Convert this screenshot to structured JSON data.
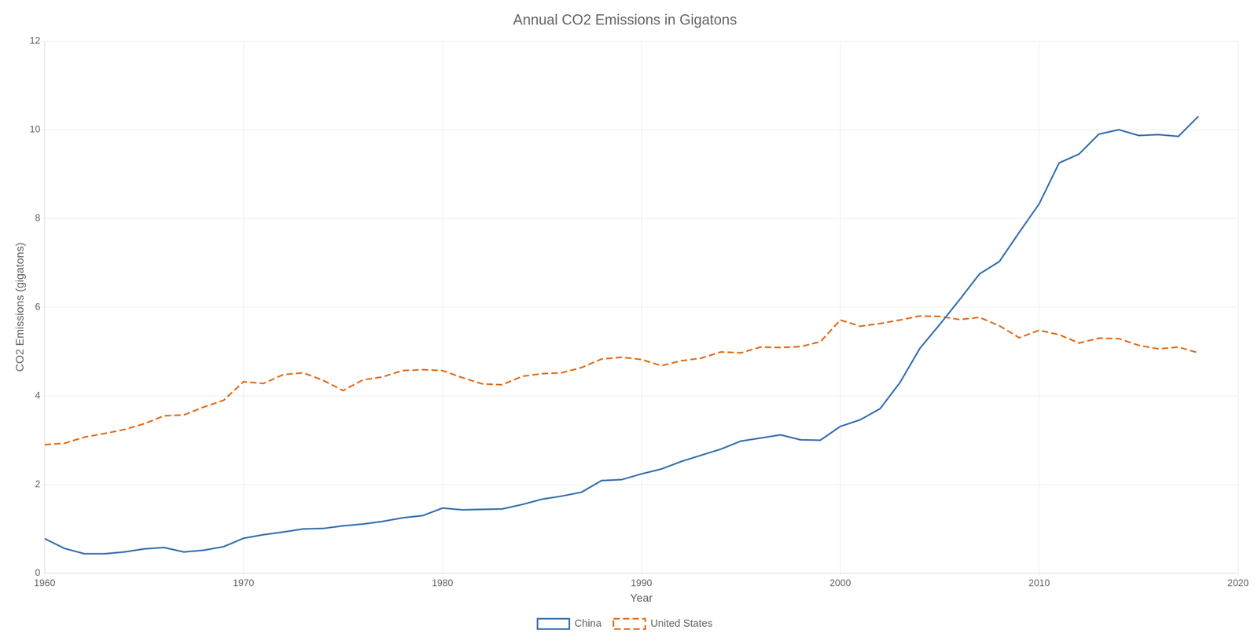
{
  "chart_data": {
    "type": "line",
    "title": "Annual CO2 Emissions in Gigatons",
    "x_label": "Year",
    "y_label": "CO2 Emissions (gigatons)",
    "x": [
      1960,
      1961,
      1962,
      1963,
      1964,
      1965,
      1966,
      1967,
      1968,
      1969,
      1970,
      1971,
      1972,
      1973,
      1974,
      1975,
      1976,
      1977,
      1978,
      1979,
      1980,
      1981,
      1982,
      1983,
      1984,
      1985,
      1986,
      1987,
      1988,
      1989,
      1990,
      1991,
      1992,
      1993,
      1994,
      1995,
      1996,
      1997,
      1998,
      1999,
      2000,
      2001,
      2002,
      2003,
      2004,
      2005,
      2006,
      2007,
      2008,
      2009,
      2010,
      2011,
      2012,
      2013,
      2014,
      2015,
      2016,
      2017,
      2018
    ],
    "series": [
      {
        "name": "China",
        "color": "#3b72b0",
        "line_style": "solid",
        "values": [
          0.78,
          0.56,
          0.44,
          0.44,
          0.48,
          0.55,
          0.58,
          0.48,
          0.52,
          0.6,
          0.79,
          0.87,
          0.93,
          1.0,
          1.01,
          1.07,
          1.11,
          1.17,
          1.25,
          1.3,
          1.47,
          1.43,
          1.44,
          1.45,
          1.55,
          1.67,
          1.74,
          1.83,
          2.09,
          2.11,
          2.24,
          2.35,
          2.52,
          2.66,
          2.8,
          2.98,
          3.05,
          3.12,
          3.01,
          3.0,
          3.31,
          3.46,
          3.71,
          4.3,
          5.07,
          5.61,
          6.17,
          6.75,
          7.03,
          7.69,
          8.33,
          9.25,
          9.45,
          9.9,
          10.0,
          9.87,
          9.89,
          9.85,
          10.3
        ]
      },
      {
        "name": "United States",
        "color": "#e07020",
        "line_style": "dashed",
        "values": [
          2.9,
          2.93,
          3.07,
          3.15,
          3.24,
          3.37,
          3.55,
          3.57,
          3.75,
          3.9,
          4.32,
          4.28,
          4.48,
          4.52,
          4.35,
          4.12,
          4.36,
          4.43,
          4.57,
          4.59,
          4.57,
          4.41,
          4.27,
          4.25,
          4.44,
          4.5,
          4.52,
          4.64,
          4.83,
          4.87,
          4.82,
          4.68,
          4.79,
          4.85,
          4.99,
          4.97,
          5.1,
          5.09,
          5.11,
          5.22,
          5.71,
          5.57,
          5.63,
          5.71,
          5.8,
          5.79,
          5.72,
          5.77,
          5.58,
          5.31,
          5.48,
          5.38,
          5.19,
          5.3,
          5.29,
          5.14,
          5.06,
          5.1,
          4.97
        ]
      }
    ],
    "xlim": [
      1960,
      2020
    ],
    "ylim": [
      0,
      12
    ],
    "xticks": [
      1960,
      1970,
      1980,
      1990,
      2000,
      2010,
      2020
    ],
    "yticks": [
      0,
      2,
      4,
      6,
      8,
      10,
      12
    ],
    "grid": true,
    "legend": "bottom"
  }
}
